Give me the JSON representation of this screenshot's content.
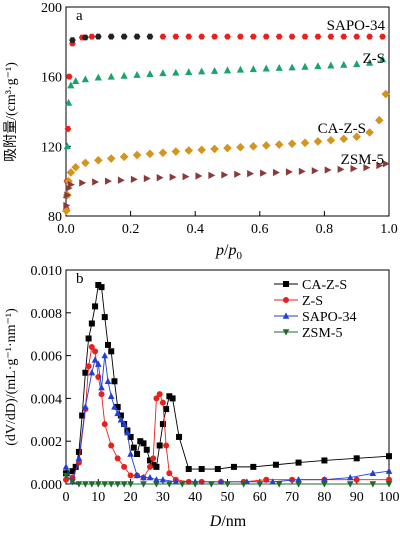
{
  "chart_data": [
    {
      "panel_label": "a",
      "type": "scatter",
      "xlabel_p": "p",
      "xlabel_slash": "/",
      "xlabel_p0": "p",
      "xlabel_p0_sub": "0",
      "ylabel": "吸附量/(cm³·g⁻¹)",
      "xlim": [
        0,
        1.0
      ],
      "ylim": [
        80,
        200
      ],
      "xticks": [
        "0.0",
        "0.2",
        "0.4",
        "0.6",
        "0.8",
        "1.0"
      ],
      "yticks": [
        "80",
        "120",
        "160",
        "200"
      ],
      "series": [
        {
          "name": "SAPO-34",
          "label": "SAPO-34",
          "color": "#e8211d",
          "marker": "hexagon",
          "color_ads": "#e8211d",
          "color_des": "#222222",
          "x_ads": [
            0.001,
            0.003,
            0.006,
            0.01,
            0.02,
            0.05,
            0.08,
            0.1,
            0.14,
            0.18,
            0.22,
            0.26,
            0.3,
            0.34,
            0.38,
            0.42,
            0.46,
            0.5,
            0.54,
            0.58,
            0.62,
            0.66,
            0.7,
            0.74,
            0.78,
            0.82,
            0.86,
            0.9,
            0.94,
            0.98
          ],
          "y_ads": [
            84,
            100,
            130,
            160,
            179,
            182.5,
            183,
            183,
            183,
            183,
            183,
            183,
            183,
            183,
            183,
            183,
            183,
            183,
            183,
            183,
            183,
            183,
            183,
            183,
            183,
            183,
            183,
            183,
            183,
            183
          ],
          "x_des": [
            0.02,
            0.06,
            0.1,
            0.14,
            0.18,
            0.22,
            0.26
          ],
          "y_des": [
            181,
            182.5,
            183,
            183,
            183,
            183,
            183
          ]
        },
        {
          "name": "Z-S",
          "label": "Z-S",
          "color": "#1aa36b",
          "marker": "triangle",
          "x_ads": [
            0.001,
            0.004,
            0.008,
            0.015,
            0.03,
            0.06,
            0.1,
            0.14,
            0.18,
            0.22,
            0.26,
            0.3,
            0.34,
            0.38,
            0.42,
            0.46,
            0.5,
            0.54,
            0.58,
            0.62,
            0.66,
            0.7,
            0.74,
            0.78,
            0.82,
            0.86,
            0.9,
            0.94,
            0.98
          ],
          "y_ads": [
            92,
            120,
            145,
            155,
            157.5,
            158.5,
            159.5,
            160,
            160.5,
            161,
            161.5,
            162,
            162.3,
            162.6,
            163,
            163.3,
            163.6,
            164,
            164.3,
            164.7,
            165,
            165.3,
            165.7,
            166,
            166.4,
            166.8,
            167.2,
            168,
            170
          ]
        },
        {
          "name": "CA-Z-S",
          "label": "CA-Z-S",
          "color": "#d4941e",
          "marker": "diamond",
          "x_ads": [
            0.001,
            0.004,
            0.008,
            0.015,
            0.03,
            0.06,
            0.1,
            0.14,
            0.18,
            0.22,
            0.26,
            0.3,
            0.34,
            0.38,
            0.42,
            0.46,
            0.5,
            0.54,
            0.58,
            0.62,
            0.66,
            0.7,
            0.74,
            0.78,
            0.82,
            0.86,
            0.9,
            0.94,
            0.97,
            0.99
          ],
          "y_ads": [
            83,
            92,
            100,
            105,
            108,
            110.5,
            112,
            113,
            114,
            115,
            115.7,
            116.3,
            117,
            117.6,
            118,
            118.5,
            119,
            119.5,
            120,
            120.5,
            121,
            121.5,
            122,
            122.8,
            123.5,
            124.3,
            125.5,
            128,
            135,
            150
          ]
        },
        {
          "name": "ZSM-5",
          "label": "ZSM-5",
          "color": "#8b3a3a",
          "marker": "triangle-right",
          "x_ads": [
            0.001,
            0.004,
            0.008,
            0.015,
            0.05,
            0.09,
            0.13,
            0.17,
            0.21,
            0.25,
            0.29,
            0.33,
            0.37,
            0.41,
            0.45,
            0.49,
            0.53,
            0.57,
            0.61,
            0.65,
            0.69,
            0.73,
            0.77,
            0.81,
            0.85,
            0.89,
            0.93,
            0.97,
            0.99
          ],
          "y_ads": [
            86,
            92,
            96,
            98,
            99,
            99.5,
            100,
            100.5,
            101,
            101.5,
            102,
            102.3,
            102.6,
            103,
            103.3,
            103.6,
            104,
            104.3,
            104.6,
            105,
            105.3,
            105.6,
            106,
            106.4,
            106.8,
            107.2,
            107.8,
            109,
            110
          ]
        }
      ]
    },
    {
      "panel_label": "b",
      "type": "line",
      "xlabel_D": "D",
      "xlabel_unit": "/nm",
      "ylabel": "(dV/dD)/(mL·g⁻¹·nm⁻¹)",
      "xlim": [
        0,
        100
      ],
      "ylim": [
        0,
        0.01
      ],
      "xticks": [
        "0",
        "10",
        "20",
        "30",
        "40",
        "50",
        "60",
        "70",
        "80",
        "90",
        "100"
      ],
      "yticks": [
        "0.000",
        "0.002",
        "0.004",
        "0.006",
        "0.008",
        "0.010"
      ],
      "legend": "top-right",
      "series": [
        {
          "name": "CA-Z-S",
          "color": "#000000",
          "marker": "square",
          "x": [
            0,
            2,
            3,
            4,
            5,
            6,
            7,
            8,
            9,
            10,
            11,
            12,
            13,
            14,
            15,
            16,
            17,
            18,
            19,
            20,
            21,
            22,
            23,
            24,
            25,
            26,
            27,
            28,
            29,
            30,
            31,
            32,
            33,
            35,
            38,
            42,
            47,
            52,
            58,
            65,
            72,
            80,
            90,
            100
          ],
          "y": [
            0.0005,
            0.0006,
            0.0008,
            0.0015,
            0.0032,
            0.0052,
            0.0068,
            0.0075,
            0.0083,
            0.0093,
            0.0092,
            0.0078,
            0.0065,
            0.0062,
            0.0048,
            0.0036,
            0.0032,
            0.0028,
            0.0025,
            0.0022,
            0.0017,
            0.0014,
            0.002,
            0.0019,
            0.0016,
            0.0011,
            0.0009,
            0.0008,
            0.0018,
            0.0028,
            0.0035,
            0.0041,
            0.004,
            0.0022,
            0.0007,
            0.0007,
            0.0007,
            0.0008,
            0.0008,
            0.0009,
            0.001,
            0.0011,
            0.0012,
            0.0013
          ]
        },
        {
          "name": "Z-S",
          "color": "#e8211d",
          "marker": "circle",
          "x": [
            0,
            2,
            4,
            6,
            7,
            8,
            9,
            10,
            11,
            12,
            14,
            16,
            18,
            20,
            22,
            24,
            26,
            27,
            28,
            29,
            30,
            31,
            32,
            34,
            38,
            42,
            48,
            55,
            62,
            70,
            80,
            90,
            100
          ],
          "y": [
            0.0002,
            0.0003,
            0.001,
            0.0035,
            0.0055,
            0.0064,
            0.0062,
            0.005,
            0.0042,
            0.0028,
            0.0018,
            0.0012,
            0.0008,
            0.0004,
            0.0004,
            0.0003,
            0.0008,
            0.0012,
            0.004,
            0.0042,
            0.0038,
            0.0018,
            0.0005,
            0.0002,
            0.0001,
            0.0001,
            0.0001,
            0.0001,
            0.0002,
            0.0002,
            0.0002,
            0.0002,
            0.0002
          ]
        },
        {
          "name": "SAPO-34",
          "color": "#1f3fd6",
          "marker": "triangle",
          "x": [
            0,
            2,
            4,
            6,
            8,
            9,
            10,
            11,
            12,
            13,
            14,
            15,
            16,
            17,
            18,
            19,
            20,
            22,
            24,
            26,
            28,
            30,
            34,
            40,
            48,
            56,
            64,
            72,
            80,
            88,
            95,
            100
          ],
          "y": [
            0.0008,
            0.0001,
            0.0012,
            0.0036,
            0.0052,
            0.0058,
            0.0056,
            0.0045,
            0.006,
            0.0048,
            0.0041,
            0.0036,
            0.0033,
            0.003,
            0.0028,
            0.0024,
            0.0014,
            0.0004,
            0.0003,
            0.0003,
            0.0002,
            0.0002,
            0.0001,
            0.0001,
            0.0001,
            0.0001,
            0.0001,
            0.0002,
            0.0002,
            0.0003,
            0.0005,
            0.0006
          ]
        },
        {
          "name": "ZSM-5",
          "color": "#1d6b2b",
          "marker": "triangle-down",
          "x": [
            0,
            2,
            4,
            6,
            8,
            10,
            12,
            14,
            16,
            18,
            20,
            24,
            28,
            32,
            36,
            40,
            45,
            50,
            55,
            60,
            66,
            72,
            80,
            88,
            95,
            100
          ],
          "y": [
            0.0004,
            0.0001,
            0.0,
            0.0,
            0.0,
            0.0,
            0.0,
            0.0,
            0.0,
            0.0,
            0.0,
            0.0,
            0.0,
            0.0,
            0.0,
            0.0,
            0.0,
            0.0,
            0.0,
            0.0,
            0.0,
            0.0,
            0.0,
            0.0,
            0.0,
            0.0
          ]
        }
      ]
    }
  ]
}
